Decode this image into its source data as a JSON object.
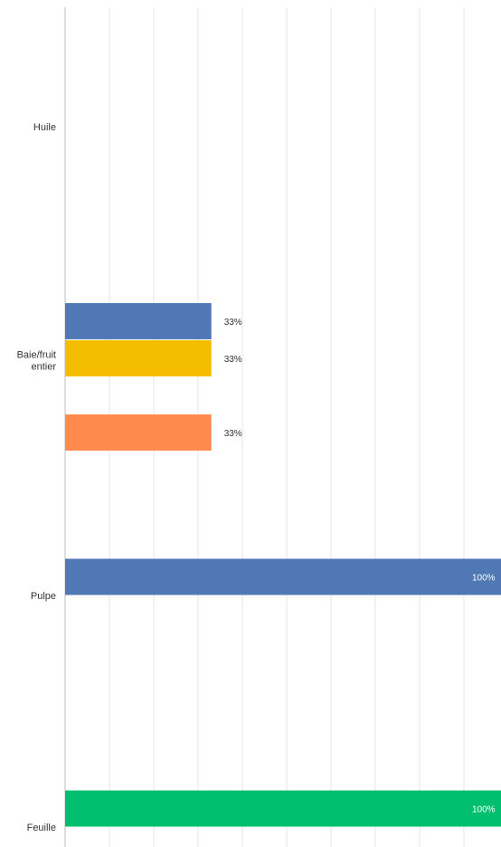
{
  "chart_data": {
    "type": "bar",
    "orientation": "horizontal",
    "title": "",
    "xlabel": "",
    "ylabel": "",
    "xlim": [
      0,
      100
    ],
    "grid": true,
    "legend": "none",
    "categories": [
      {
        "label": [
          "Huile"
        ],
        "bars": []
      },
      {
        "label": [
          "Baie/fruit",
          "entier"
        ],
        "bars": [
          {
            "value": 33,
            "label": "33%",
            "color": "#4F78B5"
          },
          {
            "value": 33,
            "label": "33%",
            "color": "#F5BD00"
          },
          {
            "value": 33,
            "label": "33%",
            "color": "#FF8A4D"
          }
        ]
      },
      {
        "label": [
          "Pulpe"
        ],
        "bars": [
          {
            "value": 100,
            "label": "100%",
            "color": "#4F78B5"
          }
        ]
      },
      {
        "label": [
          "Feuille"
        ],
        "bars": [
          {
            "value": 100,
            "label": "100%",
            "color": "#00BF6F"
          }
        ]
      }
    ]
  }
}
